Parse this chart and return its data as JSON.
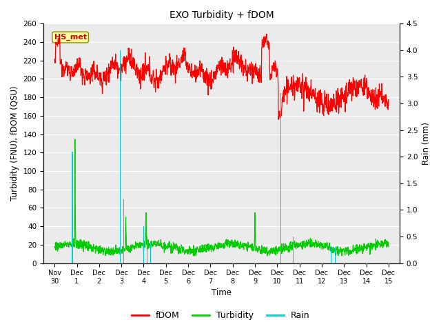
{
  "title": "EXO Turbidity + fDOM",
  "xlabel": "Time",
  "ylabel_left": "Turbidity (FNU), fDOM (QSU)",
  "ylabel_right": "Rain (mm)",
  "ylim_left": [
    0,
    260
  ],
  "ylim_right": [
    0,
    4.5
  ],
  "yticks_left": [
    0,
    20,
    40,
    60,
    80,
    100,
    120,
    140,
    160,
    180,
    200,
    220,
    240,
    260
  ],
  "yticks_right": [
    0.0,
    0.5,
    1.0,
    1.5,
    2.0,
    2.5,
    3.0,
    3.5,
    4.0,
    4.5
  ],
  "xtick_labels": [
    "Nov 30",
    "Dec 1",
    "Dec 2",
    "Dec 3",
    "Dec 4",
    "Dec 5",
    "Dec 6",
    "Dec 7",
    "Dec 8",
    "Dec 9",
    "Dec 10",
    "Dec 11",
    "Dec 12",
    "Dec 13",
    "Dec 14",
    "Dec 15"
  ],
  "fdom_color": "#FF0000",
  "turbidity_color": "#00CC00",
  "rain_color": "#00CCCC",
  "plot_bg_color": "#EBEBEB",
  "annotation_label": "HS_met",
  "annotation_facecolor": "#FFFFA0",
  "annotation_edgecolor": "#888800",
  "annotation_textcolor": "#CC0000",
  "legend_entries": [
    "fDOM",
    "Turbidity",
    "Rain"
  ],
  "n_days": 15,
  "dt_hours": 0.25,
  "figsize": [
    6.4,
    4.8
  ],
  "dpi": 100
}
